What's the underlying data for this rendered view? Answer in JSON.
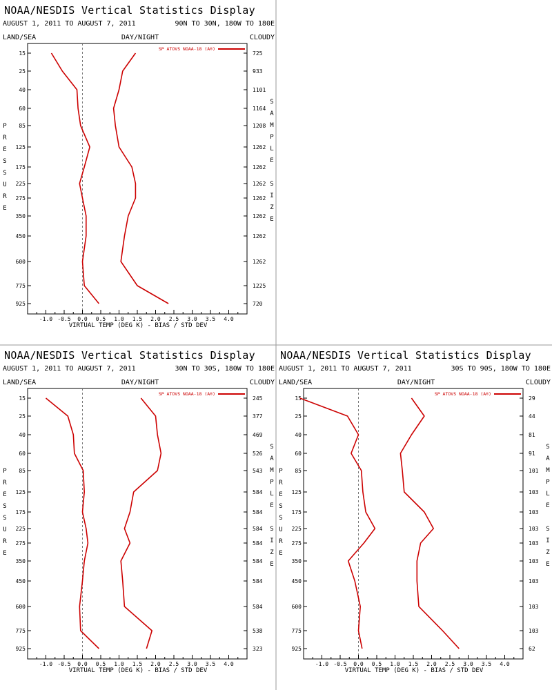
{
  "panels": [
    {
      "id": "nh",
      "title": "NOAA/NESDIS Vertical Statistics Display",
      "date_range": "AUGUST 1, 2011 TO AUGUST 7, 2011",
      "region": "90N TO 30N, 180W TO 180E",
      "land_sea": "LAND/SEA",
      "day_night": "DAY/NIGHT",
      "cloudy": "CLOUDY",
      "legend": "SP ATOVS NOAA-18 (A®)",
      "sample_sizes": [
        "725",
        "933",
        "1101",
        "1164",
        "1208",
        "1262",
        "1262",
        "1262",
        "1262",
        "1262",
        "1262",
        "1262",
        "1225",
        "720"
      ]
    },
    {
      "id": "tropics",
      "title": "NOAA/NESDIS Vertical Statistics Display",
      "date_range": "AUGUST 1, 2011 TO AUGUST 7, 2011",
      "region": "30N TO 30S, 180W TO 180E",
      "land_sea": "LAND/SEA",
      "day_night": "DAY/NIGHT",
      "cloudy": "CLOUDY",
      "legend": "SP ATOVS NOAA-18 (A®)",
      "sample_sizes": [
        "245",
        "377",
        "469",
        "526",
        "543",
        "584",
        "584",
        "584",
        "584",
        "584",
        "584",
        "584",
        "538",
        "323"
      ]
    },
    {
      "id": "sh",
      "title": "NOAA/NESDIS Vertical Statistics Display",
      "date_range": "AUGUST 1, 2011 TO AUGUST 7, 2011",
      "region": "30S TO 90S, 180W TO 180E",
      "land_sea": "LAND/SEA",
      "day_night": "DAY/NIGHT",
      "cloudy": "CLOUDY",
      "legend": "SP ATOVS NOAA-18 (A®)",
      "sample_sizes": [
        "29",
        "44",
        "81",
        "91",
        "101",
        "103",
        "103",
        "103",
        "103",
        "103",
        "103",
        "103",
        "103",
        "62"
      ]
    }
  ],
  "axes": {
    "pressure_label": "PRESSURE",
    "sample_label": "SAMPLE SIZE",
    "xlabel": "VIRTUAL TEMP (DEG K) - BIAS / STD DEV",
    "x_ticks": [
      "-1.0",
      "-0.5",
      "0.0",
      "0.5",
      "1.0",
      "1.5",
      "2.0",
      "2.5",
      "3.0",
      "3.5",
      "4.0"
    ]
  },
  "chart_data": [
    {
      "type": "line",
      "panel": "nh",
      "xlim": [
        -1.5,
        4.5
      ],
      "xlabel": "VIRTUAL TEMP (DEG K) - BIAS / STD DEV",
      "ylabel": "PRESSURE",
      "y_categories": [
        "15",
        "25",
        "40",
        "60",
        "85",
        "125",
        "175",
        "225",
        "275",
        "350",
        "450",
        "600",
        "775",
        "925"
      ],
      "legend_entry": "SP ATOVS NOAA-18 (A®)",
      "legend_position": "top-right",
      "series": [
        {
          "role": "bias",
          "values": [
            -0.85,
            -0.55,
            -0.15,
            -0.12,
            -0.05,
            0.2,
            0.05,
            -0.08,
            0.0,
            0.1,
            0.1,
            0.0,
            0.05,
            0.45
          ]
        },
        {
          "role": "std_dev",
          "values": [
            1.45,
            1.1,
            1.0,
            0.85,
            0.9,
            1.0,
            1.35,
            1.45,
            1.45,
            1.25,
            1.15,
            1.05,
            1.5,
            2.35
          ]
        }
      ]
    },
    {
      "type": "line",
      "panel": "tropics",
      "xlim": [
        -1.5,
        4.5
      ],
      "xlabel": "VIRTUAL TEMP (DEG K) - BIAS / STD DEV",
      "ylabel": "PRESSURE",
      "y_categories": [
        "15",
        "25",
        "40",
        "60",
        "85",
        "125",
        "175",
        "225",
        "275",
        "350",
        "450",
        "600",
        "775",
        "925"
      ],
      "legend_entry": "SP ATOVS NOAA-18 (A®)",
      "legend_position": "top-right",
      "series": [
        {
          "role": "bias",
          "values": [
            -1.0,
            -0.4,
            -0.25,
            -0.22,
            0.02,
            0.05,
            0.0,
            0.1,
            0.15,
            0.05,
            0.0,
            -0.08,
            -0.05,
            0.45
          ]
        },
        {
          "role": "std_dev",
          "values": [
            1.6,
            2.0,
            2.05,
            2.15,
            2.05,
            1.4,
            1.3,
            1.15,
            1.3,
            1.05,
            1.1,
            1.15,
            1.9,
            1.75
          ]
        }
      ]
    },
    {
      "type": "line",
      "panel": "sh",
      "xlim": [
        -1.5,
        4.5
      ],
      "xlabel": "VIRTUAL TEMP (DEG K) - BIAS / STD DEV",
      "ylabel": "PRESSURE",
      "y_categories": [
        "15",
        "25",
        "40",
        "60",
        "85",
        "125",
        "175",
        "225",
        "275",
        "350",
        "450",
        "600",
        "775",
        "925"
      ],
      "legend_entry": "SP ATOVS NOAA-18 (A®)",
      "legend_position": "top-right",
      "series": [
        {
          "role": "bias",
          "values": [
            -1.6,
            -0.3,
            0.0,
            -0.2,
            0.08,
            0.12,
            0.2,
            0.45,
            0.15,
            -0.28,
            -0.1,
            0.05,
            0.0,
            0.1
          ]
        },
        {
          "role": "std_dev",
          "values": [
            1.45,
            1.8,
            1.45,
            1.15,
            1.2,
            1.25,
            1.8,
            2.05,
            1.7,
            1.6,
            1.6,
            1.65,
            2.3,
            2.75
          ]
        }
      ]
    }
  ],
  "colors": {
    "series": "#cc0000",
    "axis": "#000000",
    "zero_line": "#777777",
    "divider": "#999999"
  }
}
